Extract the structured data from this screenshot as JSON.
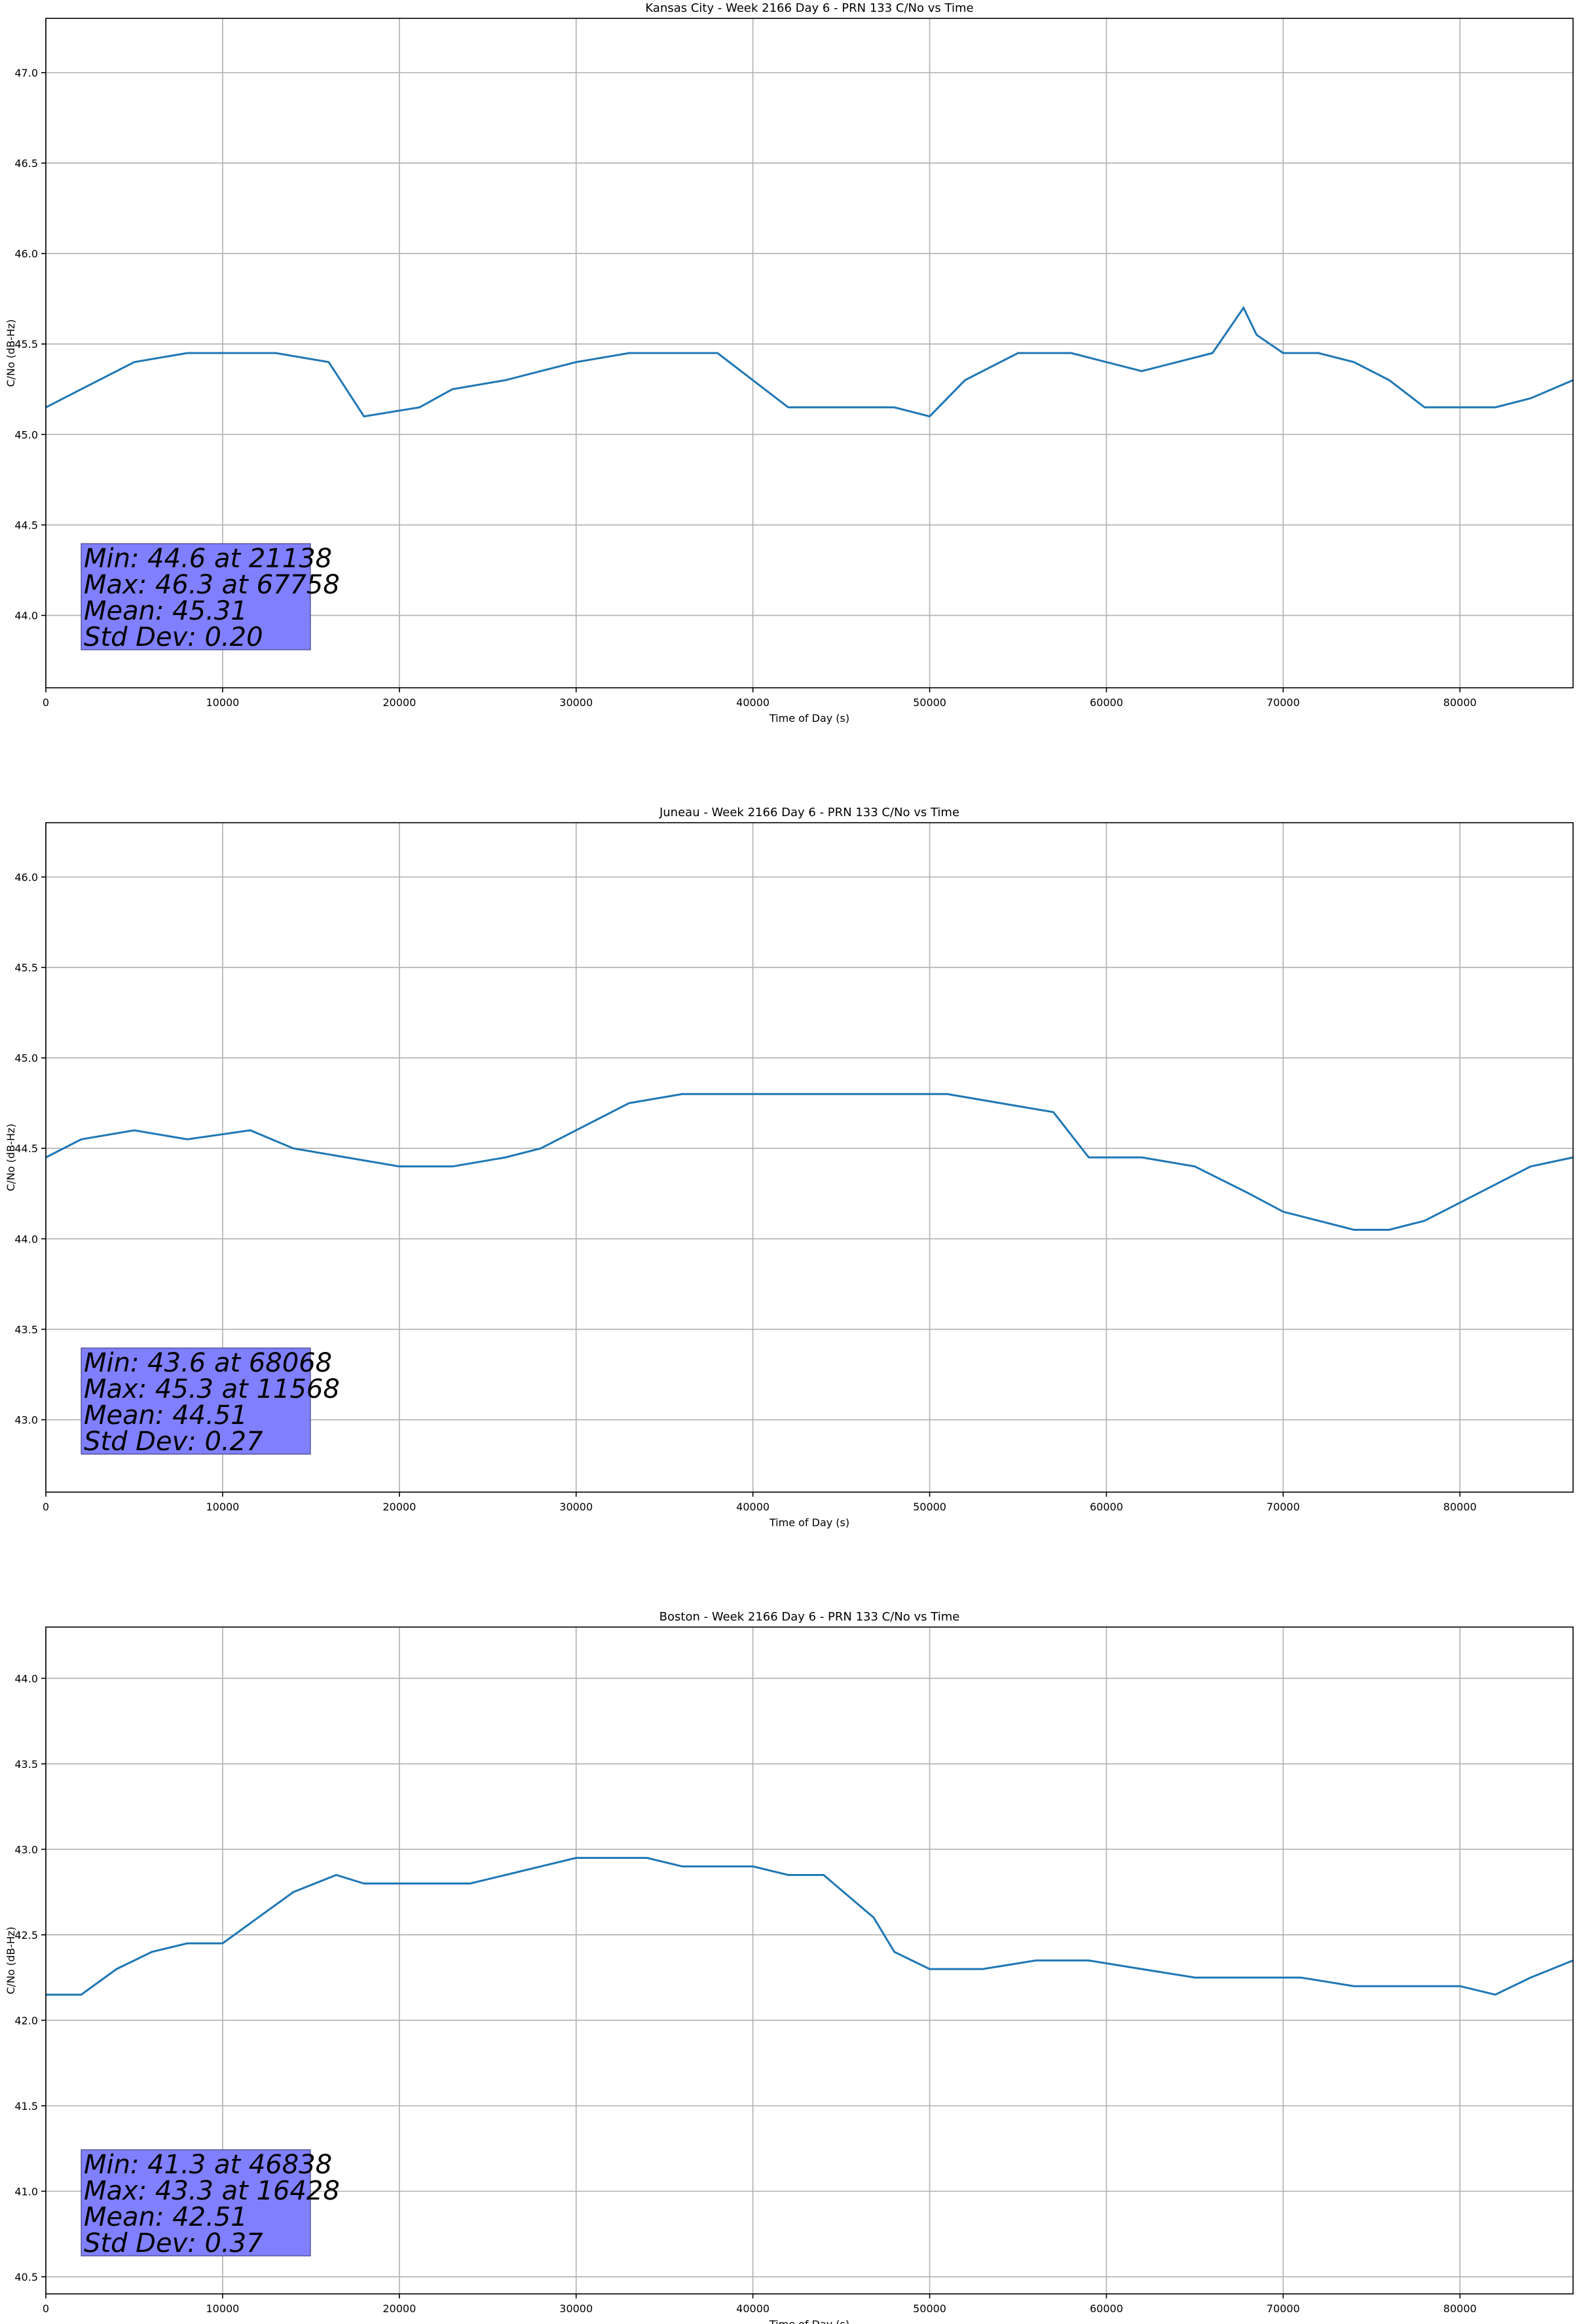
{
  "chart_data": [
    {
      "type": "line",
      "title": "Kansas City - Week 2166 Day 6 - PRN 133 C/No vs Time",
      "xlabel": "Time of Day (s)",
      "ylabel": "C/No (dB-Hz)",
      "xlim": [
        0,
        86400
      ],
      "ylim": [
        43.6,
        47.3
      ],
      "xticks": [
        0,
        10000,
        20000,
        30000,
        40000,
        50000,
        60000,
        70000,
        80000
      ],
      "yticks": [
        44.0,
        44.5,
        45.0,
        45.5,
        46.0,
        46.5,
        47.0
      ],
      "grid": true,
      "line_color": "#1f77b4",
      "stats_box_color": "#8080ff",
      "stats": [
        "Min: 44.6 at 21138",
        "Max: 46.3 at 67758",
        "Mean: 45.31",
        "Std Dev: 0.20"
      ],
      "series": [
        {
          "x": [
            0,
            2000,
            5000,
            8000,
            10000,
            13000,
            16000,
            18000,
            21138,
            23000,
            26000,
            28000,
            30000,
            33000,
            36000,
            38000,
            40000,
            42000,
            45000,
            48000,
            50000,
            52000,
            55000,
            58000,
            60000,
            62000,
            64000,
            66000,
            67758,
            68500,
            70000,
            72000,
            74000,
            76000,
            78000,
            80000,
            82000,
            84000,
            86400
          ],
          "y": [
            45.15,
            45.25,
            45.4,
            45.45,
            45.45,
            45.45,
            45.4,
            45.1,
            45.15,
            45.25,
            45.3,
            45.35,
            45.4,
            45.45,
            45.45,
            45.45,
            45.3,
            45.15,
            45.15,
            45.15,
            45.1,
            45.3,
            45.45,
            45.45,
            45.4,
            45.35,
            45.4,
            45.45,
            45.7,
            45.55,
            45.45,
            45.45,
            45.4,
            45.3,
            45.15,
            45.15,
            45.15,
            45.2,
            45.3
          ]
        }
      ]
    },
    {
      "type": "line",
      "title": "Juneau - Week 2166 Day 6 - PRN 133 C/No vs Time",
      "xlabel": "Time of Day (s)",
      "ylabel": "C/No (dB-Hz)",
      "xlim": [
        0,
        86400
      ],
      "ylim": [
        42.6,
        46.3
      ],
      "xticks": [
        0,
        10000,
        20000,
        30000,
        40000,
        50000,
        60000,
        70000,
        80000
      ],
      "yticks": [
        43.0,
        43.5,
        44.0,
        44.5,
        45.0,
        45.5,
        46.0
      ],
      "grid": true,
      "line_color": "#1f77b4",
      "stats_box_color": "#8080ff",
      "stats": [
        "Min: 43.6 at 68068",
        "Max: 45.3 at 11568",
        "Mean: 44.51",
        "Std Dev: 0.27"
      ],
      "series": [
        {
          "x": [
            0,
            2000,
            5000,
            8000,
            11568,
            14000,
            17000,
            20000,
            23000,
            26000,
            28000,
            30000,
            33000,
            36000,
            39000,
            42000,
            45000,
            48000,
            51000,
            54000,
            57000,
            59000,
            62000,
            65000,
            68068,
            70000,
            72000,
            74000,
            76000,
            78000,
            80000,
            82000,
            84000,
            86400
          ],
          "y": [
            44.45,
            44.55,
            44.6,
            44.55,
            44.6,
            44.5,
            44.45,
            44.4,
            44.4,
            44.45,
            44.5,
            44.6,
            44.75,
            44.8,
            44.8,
            44.8,
            44.8,
            44.8,
            44.8,
            44.75,
            44.7,
            44.45,
            44.45,
            44.4,
            44.25,
            44.15,
            44.1,
            44.05,
            44.05,
            44.1,
            44.2,
            44.3,
            44.4,
            44.45
          ]
        }
      ]
    },
    {
      "type": "line",
      "title": "Boston - Week 2166 Day 6 - PRN 133 C/No vs Time",
      "xlabel": "Time of Day (s)",
      "ylabel": "C/No (dB-Hz)",
      "xlim": [
        0,
        86400
      ],
      "ylim": [
        40.4,
        44.3
      ],
      "xticks": [
        0,
        10000,
        20000,
        30000,
        40000,
        50000,
        60000,
        70000,
        80000
      ],
      "yticks": [
        40.5,
        41.0,
        41.5,
        42.0,
        42.5,
        43.0,
        43.5,
        44.0
      ],
      "grid": true,
      "line_color": "#1f77b4",
      "stats_box_color": "#8080ff",
      "stats": [
        "Min: 41.3 at 46838",
        "Max: 43.3 at 16428",
        "Mean: 42.51",
        "Std Dev: 0.37"
      ],
      "series": [
        {
          "x": [
            0,
            2000,
            4000,
            6000,
            8000,
            10000,
            12000,
            14000,
            16428,
            18000,
            20000,
            22000,
            24000,
            26000,
            28000,
            30000,
            32000,
            34000,
            36000,
            38000,
            40000,
            42000,
            44000,
            46838,
            48000,
            50000,
            53000,
            56000,
            59000,
            62000,
            65000,
            68000,
            71000,
            74000,
            77000,
            80000,
            82000,
            84000,
            86400
          ],
          "y": [
            42.15,
            42.15,
            42.3,
            42.4,
            42.45,
            42.45,
            42.6,
            42.75,
            42.85,
            42.8,
            42.8,
            42.8,
            42.8,
            42.85,
            42.9,
            42.95,
            42.95,
            42.95,
            42.9,
            42.9,
            42.9,
            42.85,
            42.85,
            42.6,
            42.4,
            42.3,
            42.3,
            42.35,
            42.35,
            42.3,
            42.25,
            42.25,
            42.25,
            42.2,
            42.2,
            42.2,
            42.15,
            42.25,
            42.35
          ]
        }
      ]
    }
  ]
}
